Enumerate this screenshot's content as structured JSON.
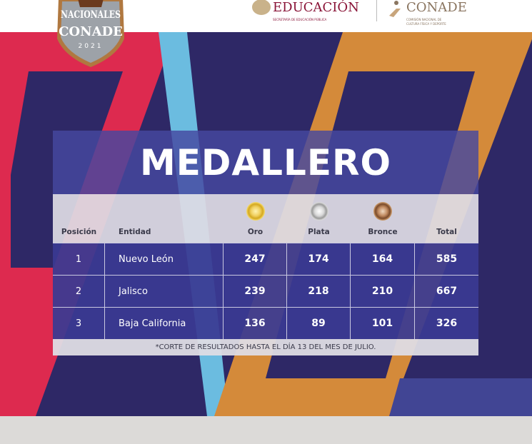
{
  "header": {
    "event_logo": {
      "line1": "NACIONALES",
      "line2": "CONADE",
      "year": "2021"
    },
    "sep_logo": {
      "title": "EDUCACIÓN",
      "subtitle": "SECRETARÍA DE EDUCACIÓN PÚBLICA"
    },
    "conade_logo": {
      "title": "CONADE",
      "subtitle": "COMISIÓN NACIONAL DE CULTURA FÍSICA Y DEPORTE"
    }
  },
  "colors": {
    "navy": "#2e2866",
    "red": "#dd2a4f",
    "light_blue": "#6bbce0",
    "orange": "#d48a3a",
    "blue": "#414594",
    "gold": "#e0b83a",
    "silver": "#a8a8a8",
    "bronze": "#7a4a2a"
  },
  "medallero": {
    "title": "MEDALLERO",
    "columns": [
      "Posición",
      "Entidad",
      "Oro",
      "Plata",
      "Bronce",
      "Total"
    ],
    "medal_icons": [
      "gold-medal-icon",
      "silver-medal-icon",
      "bronze-medal-icon"
    ],
    "rows": [
      [
        "1",
        "Nuevo León",
        "247",
        "174",
        "164",
        "585"
      ],
      [
        "2",
        "Jalisco",
        "239",
        "218",
        "210",
        "667"
      ],
      [
        "3",
        "Baja California",
        "136",
        "89",
        "101",
        "326"
      ]
    ],
    "note": "*CORTE DE RESULTADOS HASTA EL DÍA 13 DEL MES DE JULIO."
  }
}
